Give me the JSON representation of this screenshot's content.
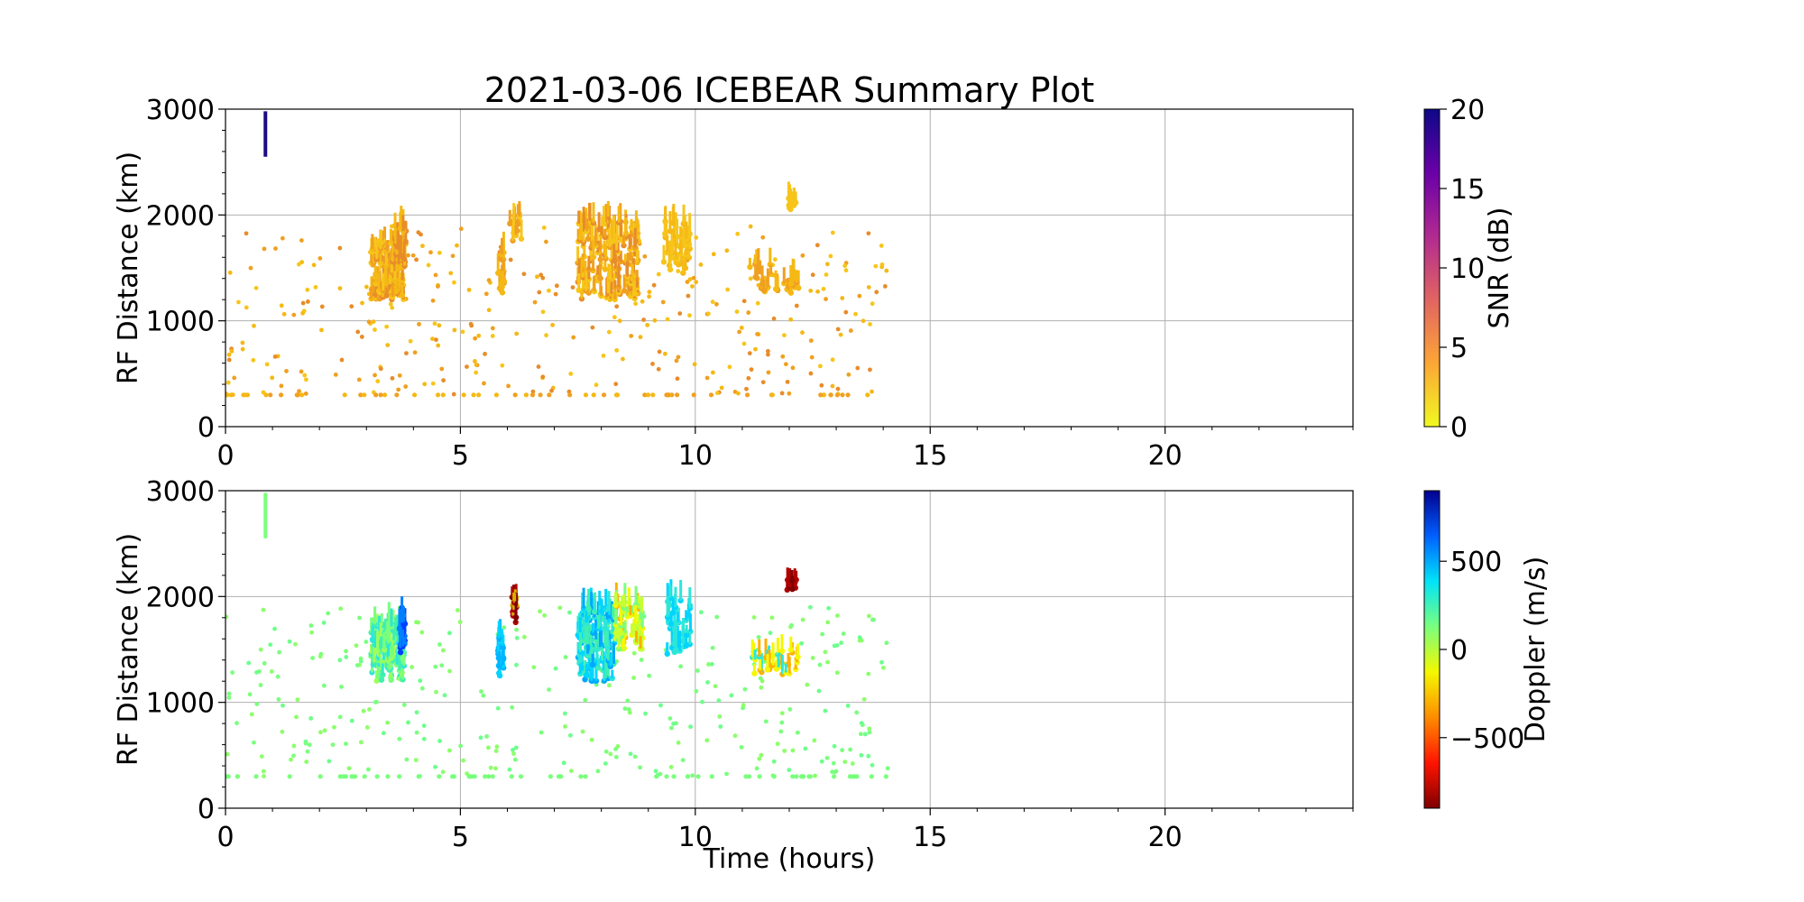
{
  "chart_data": [
    {
      "type": "scatter",
      "title": "2021-03-06 ICEBEAR Summary Plot",
      "xlabel": "",
      "ylabel": "RF Distance (km)",
      "xlim": [
        0,
        24
      ],
      "ylim": [
        0,
        3000
      ],
      "grid": true,
      "xticks": [
        "0",
        "5",
        "10",
        "15",
        "20"
      ],
      "yticks": [
        "0",
        "1000",
        "2000",
        "3000"
      ],
      "colorbar": {
        "label": "SNR (dB)",
        "range": [
          0,
          20
        ],
        "ticks": [
          "0",
          "5",
          "10",
          "15",
          "20"
        ],
        "colormap": "plasma_r",
        "stops": [
          "#f0f921",
          "#fca636",
          "#e16462",
          "#b12a90",
          "#6a00a8",
          "#0d0887"
        ]
      },
      "series": [
        {
          "clusters": [
            {
              "x": [
                3.1,
                3.8
              ],
              "y": [
                1200,
                1750
              ],
              "n": 120,
              "colors": [
                "#f5b915",
                "#f0a020",
                "#e88c2a",
                "#f7c51a"
              ]
            },
            {
              "x": [
                3.6,
                3.85
              ],
              "y": [
                1500,
                1920
              ],
              "n": 30,
              "colors": [
                "#f5b915",
                "#e88c2a"
              ]
            },
            {
              "x": [
                5.8,
                5.95
              ],
              "y": [
                1250,
                1650
              ],
              "n": 20,
              "colors": [
                "#f5b915",
                "#f0a020"
              ]
            },
            {
              "x": [
                6.05,
                6.3
              ],
              "y": [
                1750,
                2020
              ],
              "n": 15,
              "colors": [
                "#f7c51a",
                "#f0a020"
              ]
            },
            {
              "x": [
                7.5,
                8.8
              ],
              "y": [
                1200,
                1950
              ],
              "n": 160,
              "colors": [
                "#f5b915",
                "#f0a020",
                "#e88c2a",
                "#f7c51a"
              ]
            },
            {
              "x": [
                9.3,
                9.9
              ],
              "y": [
                1450,
                1950
              ],
              "n": 45,
              "colors": [
                "#f7c51a",
                "#f5b915"
              ]
            },
            {
              "x": [
                11.1,
                12.2
              ],
              "y": [
                1250,
                1550
              ],
              "n": 30,
              "colors": [
                "#f5b915",
                "#f0a020"
              ]
            },
            {
              "x": [
                11.95,
                12.15
              ],
              "y": [
                2050,
                2160
              ],
              "n": 10,
              "colors": [
                "#f7c51a"
              ]
            }
          ],
          "scatter_points": [
            {
              "x": [
                0,
                14.1
              ],
              "y": [
                300,
                1900
              ],
              "n": 320,
              "colors": [
                "#f0a020",
                "#f5b915",
                "#e88c2a",
                "#f7c51a"
              ]
            }
          ],
          "base_line": {
            "y": 300,
            "x": [
              0,
              14.1
            ],
            "n": 60,
            "colors": [
              "#f0a020",
              "#f5b915"
            ]
          },
          "reference_bar": {
            "x": 0.85,
            "y": [
              2550,
              2980
            ],
            "color": "#1b0c86"
          }
        }
      ]
    },
    {
      "type": "scatter",
      "title": "",
      "xlabel": "Time (hours)",
      "ylabel": "RF Distance (km)",
      "xlim": [
        0,
        24
      ],
      "ylim": [
        0,
        3000
      ],
      "grid": true,
      "xticks": [
        "0",
        "5",
        "10",
        "15",
        "20"
      ],
      "yticks": [
        "0",
        "1000",
        "2000",
        "3000"
      ],
      "colorbar": {
        "label": "Doppler (m/s)",
        "range": [
          -900,
          900
        ],
        "ticks": [
          "−500",
          "0",
          "500"
        ],
        "tick_values": [
          -500,
          0,
          500
        ],
        "colormap": "jet_r",
        "stops": [
          "#7f0000",
          "#ff1400",
          "#ff8c00",
          "#f4f800",
          "#7aff7d",
          "#00e4f8",
          "#0060ff",
          "#00008f"
        ]
      },
      "series": [
        {
          "clusters": [
            {
              "x": [
                3.1,
                3.8
              ],
              "y": [
                1200,
                1750
              ],
              "n": 120,
              "colors": [
                "#7aff7d",
                "#3ff0b0",
                "#2ee6d8",
                "#9cff5b"
              ]
            },
            {
              "x": [
                3.7,
                3.82
              ],
              "y": [
                1450,
                1920
              ],
              "n": 25,
              "colors": [
                "#0040ff",
                "#0080ff"
              ]
            },
            {
              "x": [
                5.8,
                5.95
              ],
              "y": [
                1250,
                1650
              ],
              "n": 20,
              "colors": [
                "#00b4ff",
                "#00d4ff"
              ]
            },
            {
              "x": [
                6.1,
                6.2
              ],
              "y": [
                1750,
                2020
              ],
              "n": 15,
              "colors": [
                "#7f0000",
                "#b00000",
                "#d8b000"
              ]
            },
            {
              "x": [
                7.5,
                8.3
              ],
              "y": [
                1200,
                1900
              ],
              "n": 130,
              "colors": [
                "#00d4ff",
                "#00a8ff",
                "#2ee6d8",
                "#3ff0b0"
              ]
            },
            {
              "x": [
                8.3,
                8.9
              ],
              "y": [
                1500,
                1950
              ],
              "n": 50,
              "colors": [
                "#c8ff30",
                "#f4f800",
                "#ffb000",
                "#7aff7d"
              ]
            },
            {
              "x": [
                9.4,
                9.9
              ],
              "y": [
                1450,
                2000
              ],
              "n": 40,
              "colors": [
                "#2ee6d8",
                "#00d4ff"
              ]
            },
            {
              "x": [
                11.2,
                12.2
              ],
              "y": [
                1250,
                1500
              ],
              "n": 30,
              "colors": [
                "#2ee6d8",
                "#ffb000",
                "#f4f800"
              ]
            },
            {
              "x": [
                11.95,
                12.15
              ],
              "y": [
                2050,
                2160
              ],
              "n": 10,
              "colors": [
                "#7f0000",
                "#b00000"
              ]
            }
          ],
          "scatter_points": [
            {
              "x": [
                0,
                14.1
              ],
              "y": [
                300,
                1900
              ],
              "n": 320,
              "colors": [
                "#7aff7d",
                "#8cff6a",
                "#6cff8c"
              ]
            }
          ],
          "base_line": {
            "y": 300,
            "x": [
              0,
              14.1
            ],
            "n": 60,
            "colors": [
              "#7aff7d"
            ]
          },
          "reference_bar": {
            "x": 0.85,
            "y": [
              2550,
              2980
            ],
            "color": "#7aff7d"
          }
        }
      ]
    }
  ]
}
